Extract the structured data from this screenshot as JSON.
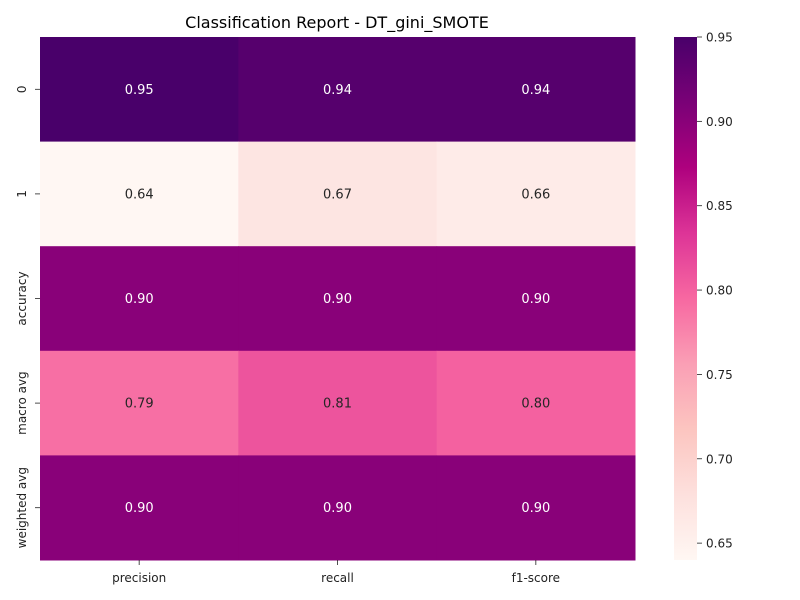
{
  "chart_data": {
    "type": "heatmap",
    "title": "Classification Report - DT_gini_SMOTE",
    "xlabel": "",
    "ylabel": "",
    "columns": [
      "precision",
      "recall",
      "f1-score"
    ],
    "rows": [
      "0",
      "1",
      "accuracy",
      "macro avg",
      "weighted avg"
    ],
    "values": [
      [
        0.95,
        0.94,
        0.94
      ],
      [
        0.64,
        0.67,
        0.66
      ],
      [
        0.9,
        0.9,
        0.9
      ],
      [
        0.79,
        0.81,
        0.8
      ],
      [
        0.9,
        0.9,
        0.9
      ]
    ],
    "value_labels": [
      [
        "0.95",
        "0.94",
        "0.94"
      ],
      [
        "0.64",
        "0.67",
        "0.66"
      ],
      [
        "0.90",
        "0.90",
        "0.90"
      ],
      [
        "0.79",
        "0.81",
        "0.80"
      ],
      [
        "0.90",
        "0.90",
        "0.90"
      ]
    ],
    "colormap": "RdPu",
    "colorbar": {
      "vmin": 0.64,
      "vmax": 0.95,
      "ticks": [
        "0.65",
        "0.70",
        "0.75",
        "0.80",
        "0.85",
        "0.90",
        "0.95"
      ],
      "stops": [
        "#fff7f3",
        "#fde0dd",
        "#fcc5c0",
        "#fa9fb5",
        "#f768a1",
        "#dd3497",
        "#ae017e",
        "#7a0177",
        "#49006a"
      ]
    },
    "grid": false
  }
}
